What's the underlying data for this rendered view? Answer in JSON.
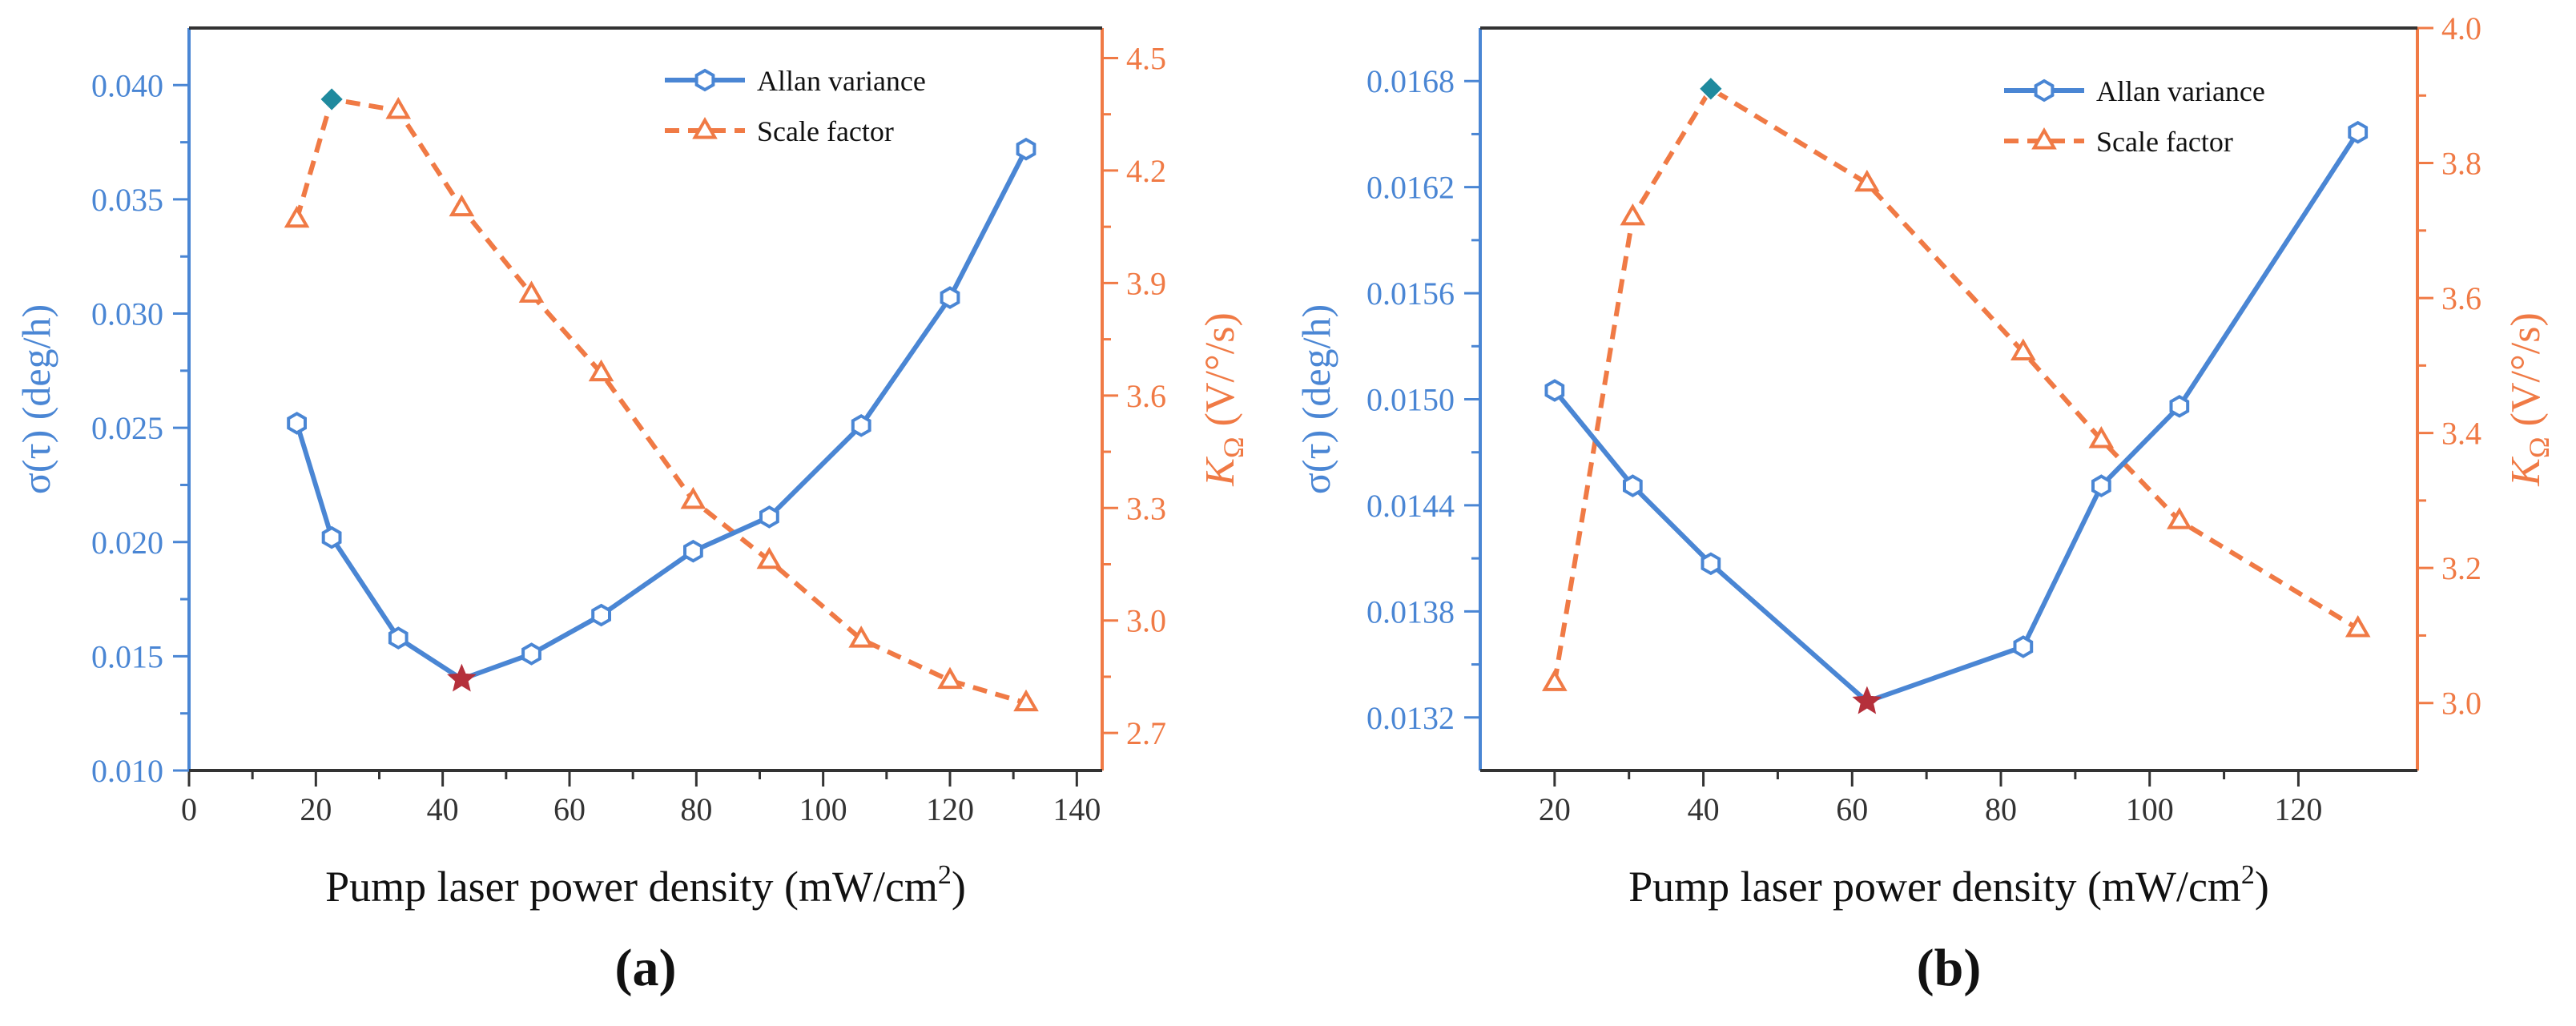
{
  "colors": {
    "allan": "#4a86d4",
    "scale": "#f07a45",
    "max_marker": "#1f8a9e",
    "min_marker": "#b5303b",
    "axis": "#333333"
  },
  "chart_data": [
    {
      "type": "line",
      "panel_label": "(a)",
      "xlabel_main": "Pump laser power density (mW/cm",
      "xlabel_sup": "2",
      "xlabel_end": ")",
      "ylabel_left": "σ(τ) (deg/h)",
      "ylabel_right_main": "K",
      "ylabel_right_sub": "Ω",
      "ylabel_right_rest": " (V/°/s)",
      "xlim": [
        0,
        144
      ],
      "xticks": [
        0,
        20,
        40,
        60,
        80,
        100,
        120,
        140
      ],
      "xtick_labels": [
        "0",
        "20",
        "40",
        "60",
        "80",
        "100",
        "120",
        "140"
      ],
      "ylim_left": [
        0.01,
        0.0425
      ],
      "yticks_left": [
        0.01,
        0.015,
        0.02,
        0.025,
        0.03,
        0.035,
        0.04
      ],
      "ytick_labels_left": [
        "0.010",
        "0.015",
        "0.020",
        "0.025",
        "0.030",
        "0.035",
        "0.040"
      ],
      "ylim_right": [
        2.6,
        4.58
      ],
      "yticks_right": [
        2.7,
        3.0,
        3.3,
        3.6,
        3.9,
        4.2,
        4.5
      ],
      "ytick_labels_right": [
        "2.7",
        "3.0",
        "3.3",
        "3.6",
        "3.9",
        "4.2",
        "4.5"
      ],
      "legend": {
        "position": "top-right",
        "allan_label": "Allan variance",
        "scale_label": "Scale factor"
      },
      "series": [
        {
          "name": "Allan variance",
          "axis": "left",
          "style": "solid-hexagon",
          "x": [
            17,
            22.5,
            33,
            43,
            54,
            65,
            79.5,
            91.5,
            106,
            120,
            132
          ],
          "y": [
            0.0252,
            0.0202,
            0.0158,
            0.014,
            0.0151,
            0.0168,
            0.0196,
            0.0211,
            0.0251,
            0.0307,
            0.0372
          ]
        },
        {
          "name": "Scale factor",
          "axis": "right",
          "style": "dashed-triangle",
          "x": [
            17,
            22.5,
            33,
            43,
            54,
            65,
            79.5,
            91.5,
            106,
            120,
            132
          ],
          "y": [
            4.07,
            4.39,
            4.36,
            4.1,
            3.87,
            3.66,
            3.32,
            3.16,
            2.95,
            2.84,
            2.78
          ]
        }
      ],
      "highlights": [
        {
          "kind": "diamond",
          "series": "Scale factor",
          "x": 22.5,
          "y": 4.39
        },
        {
          "kind": "star",
          "series": "Allan variance",
          "x": 43,
          "y": 0.014
        }
      ]
    },
    {
      "type": "line",
      "panel_label": "(b)",
      "xlabel_main": "Pump laser power density (mW/cm",
      "xlabel_sup": "2",
      "xlabel_end": ")",
      "ylabel_left": "σ(τ) (deg/h)",
      "ylabel_right_main": "K",
      "ylabel_right_sub": "Ω",
      "ylabel_right_rest": " (V/°/s)",
      "xlim": [
        10,
        136
      ],
      "xticks": [
        20,
        40,
        60,
        80,
        100,
        120
      ],
      "xtick_labels": [
        "20",
        "40",
        "60",
        "80",
        "100",
        "120"
      ],
      "ylim_left": [
        0.0129,
        0.0171
      ],
      "yticks_left": [
        0.0132,
        0.0138,
        0.0144,
        0.015,
        0.0156,
        0.0162,
        0.0168
      ],
      "ytick_labels_left": [
        "0.0132",
        "0.0138",
        "0.0144",
        "0.0150",
        "0.0156",
        "0.0162",
        "0.0168"
      ],
      "ylim_right": [
        2.9,
        4.0
      ],
      "yticks_right": [
        3.0,
        3.2,
        3.4,
        3.6,
        3.8,
        4.0
      ],
      "ytick_labels_right": [
        "3.0",
        "3.2",
        "3.4",
        "3.6",
        "3.8",
        "4.0"
      ],
      "legend": {
        "position": "top-right",
        "allan_label": "Allan variance",
        "scale_label": "Scale factor"
      },
      "series": [
        {
          "name": "Allan variance",
          "axis": "left",
          "style": "solid-hexagon",
          "x": [
            20,
            30.5,
            41,
            62,
            83,
            93.5,
            104,
            128
          ],
          "y": [
            0.01505,
            0.01451,
            0.01407,
            0.01329,
            0.0136,
            0.01451,
            0.01496,
            0.01651
          ]
        },
        {
          "name": "Scale factor",
          "axis": "right",
          "style": "dashed-triangle",
          "x": [
            20,
            30.5,
            41,
            62,
            83,
            93.5,
            104,
            128
          ],
          "y": [
            3.03,
            3.72,
            3.91,
            3.77,
            3.52,
            3.39,
            3.27,
            3.11
          ]
        }
      ],
      "highlights": [
        {
          "kind": "diamond",
          "series": "Scale factor",
          "x": 41,
          "y": 3.91
        },
        {
          "kind": "star",
          "series": "Allan variance",
          "x": 62,
          "y": 0.01329
        }
      ]
    }
  ]
}
